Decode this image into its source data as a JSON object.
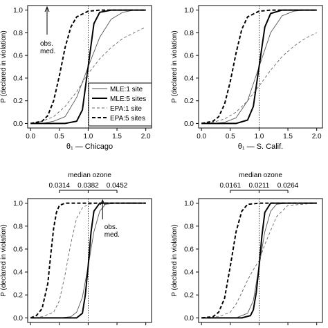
{
  "chart_data": [
    {
      "type": "line",
      "xlabel": "θ₁ — Chicago",
      "ylabel": "P (declared in violation)",
      "xlim": [
        -0.05,
        2.1
      ],
      "ylim": [
        -0.04,
        1.04
      ],
      "xticks": [
        "0.0",
        "0.5",
        "1.0",
        "1.5",
        "2.0"
      ],
      "yticks": [
        "0.0",
        "0.2",
        "0.4",
        "0.6",
        "0.8",
        "1.0"
      ],
      "vline_x": 1.0,
      "annotation": {
        "text": [
          "obs.",
          "med."
        ],
        "position": "top-left",
        "arrow": "up"
      },
      "legend": {
        "position": "bottom-right",
        "entries": [
          "MLE:1 site",
          "MLE:5 sites",
          "EPA:1 site",
          "EPA:5 sites"
        ]
      },
      "series": [
        {
          "name": "MLE:1 site",
          "style": "thin-solid",
          "x": [
            0.0,
            0.2,
            0.4,
            0.6,
            0.8,
            1.0,
            1.2,
            1.4,
            1.6,
            1.8,
            2.0
          ],
          "y": [
            0.0,
            0.0,
            0.02,
            0.06,
            0.23,
            0.5,
            0.76,
            0.92,
            0.98,
            1.0,
            1.0
          ]
        },
        {
          "name": "MLE:5 sites",
          "style": "thick-solid",
          "x": [
            0.0,
            0.2,
            0.4,
            0.6,
            0.8,
            0.9,
            1.0,
            1.1,
            1.2,
            1.4,
            1.6,
            2.0
          ],
          "y": [
            0.0,
            0.0,
            0.0,
            0.0,
            0.02,
            0.12,
            0.5,
            0.88,
            0.98,
            1.0,
            1.0,
            1.0
          ]
        },
        {
          "name": "EPA:1 site",
          "style": "thin-dashed",
          "x": [
            0.0,
            0.2,
            0.4,
            0.6,
            0.8,
            1.0,
            1.2,
            1.4,
            1.6,
            1.8,
            2.0
          ],
          "y": [
            0.0,
            0.02,
            0.06,
            0.15,
            0.28,
            0.44,
            0.57,
            0.67,
            0.75,
            0.8,
            0.85
          ]
        },
        {
          "name": "EPA:5 sites",
          "style": "thick-dashed",
          "x": [
            0.0,
            0.2,
            0.3,
            0.4,
            0.5,
            0.6,
            0.7,
            0.8,
            1.0,
            1.2,
            1.4,
            2.0
          ],
          "y": [
            0.0,
            0.02,
            0.07,
            0.2,
            0.42,
            0.67,
            0.85,
            0.94,
            0.99,
            1.0,
            1.0,
            1.0
          ]
        }
      ]
    },
    {
      "type": "line",
      "xlabel": "θ₁ — S. Calif.",
      "ylabel": "P (declared in violation)",
      "xlim": [
        -0.05,
        2.1
      ],
      "ylim": [
        -0.04,
        1.04
      ],
      "xticks": [
        "0.0",
        "0.5",
        "1.0",
        "1.5",
        "2.0"
      ],
      "yticks": [
        "0.0",
        "0.2",
        "0.4",
        "0.6",
        "0.8",
        "1.0"
      ],
      "vline_x": 1.0,
      "series": [
        {
          "name": "MLE:1 site",
          "style": "thin-solid",
          "x": [
            0.0,
            0.2,
            0.4,
            0.6,
            0.8,
            1.0,
            1.2,
            1.4,
            1.6,
            1.8,
            2.0
          ],
          "y": [
            0.0,
            0.0,
            0.01,
            0.05,
            0.2,
            0.5,
            0.8,
            0.95,
            0.99,
            1.0,
            1.0
          ]
        },
        {
          "name": "MLE:5 sites",
          "style": "thick-solid",
          "x": [
            0.0,
            0.2,
            0.4,
            0.6,
            0.8,
            0.9,
            1.0,
            1.1,
            1.2,
            1.4,
            2.0
          ],
          "y": [
            0.0,
            0.0,
            0.0,
            0.0,
            0.03,
            0.15,
            0.5,
            0.85,
            0.97,
            1.0,
            1.0
          ]
        },
        {
          "name": "EPA:1 site",
          "style": "thin-dashed",
          "x": [
            0.0,
            0.2,
            0.4,
            0.6,
            0.8,
            1.0,
            1.2,
            1.4,
            1.6,
            1.8,
            2.0
          ],
          "y": [
            0.0,
            0.01,
            0.04,
            0.1,
            0.2,
            0.33,
            0.47,
            0.59,
            0.68,
            0.75,
            0.8
          ]
        },
        {
          "name": "EPA:5 sites",
          "style": "thick-dashed",
          "x": [
            0.0,
            0.2,
            0.3,
            0.4,
            0.5,
            0.6,
            0.7,
            0.8,
            1.0,
            1.2,
            1.5,
            2.0
          ],
          "y": [
            0.0,
            0.02,
            0.06,
            0.17,
            0.37,
            0.62,
            0.83,
            0.94,
            0.99,
            1.0,
            1.0,
            1.0
          ]
        }
      ]
    },
    {
      "type": "line",
      "top_axis_label": "median ozone",
      "ylabel": "P (declared in violation)",
      "xlim": [
        -0.05,
        2.1
      ],
      "ylim": [
        -0.04,
        1.04
      ],
      "top_ticks": [
        {
          "x": 0.5,
          "label": "0.0314"
        },
        {
          "x": 1.0,
          "label": "0.0382"
        },
        {
          "x": 1.5,
          "label": "0.0452"
        }
      ],
      "yticks": [
        "0.0",
        "0.2",
        "0.4",
        "0.6",
        "0.8",
        "1.0"
      ],
      "vline_x": 1.0,
      "annotation": {
        "text": [
          "obs.",
          "med."
        ],
        "position": "top-right",
        "arrow": "up"
      },
      "series": [
        {
          "name": "MLE:1 site",
          "style": "thin-solid",
          "x": [
            0.0,
            0.5,
            0.7,
            0.8,
            0.9,
            1.0,
            1.1,
            1.2,
            1.3,
            1.5,
            2.0
          ],
          "y": [
            0.0,
            0.0,
            0.01,
            0.05,
            0.18,
            0.45,
            0.75,
            0.93,
            0.99,
            1.0,
            1.0
          ]
        },
        {
          "name": "MLE:5 sites",
          "style": "thick-solid",
          "x": [
            0.0,
            0.6,
            0.8,
            0.9,
            0.95,
            1.0,
            1.05,
            1.1,
            1.2,
            1.4,
            2.0
          ],
          "y": [
            0.0,
            0.0,
            0.0,
            0.04,
            0.2,
            0.45,
            0.75,
            0.93,
            1.0,
            1.0,
            1.0
          ]
        },
        {
          "name": "EPA:1 site",
          "style": "thin-dashed",
          "x": [
            0.0,
            0.2,
            0.4,
            0.5,
            0.6,
            0.7,
            0.8,
            0.9,
            1.0,
            1.2,
            2.0
          ],
          "y": [
            0.0,
            0.01,
            0.05,
            0.15,
            0.38,
            0.65,
            0.87,
            0.96,
            0.99,
            1.0,
            1.0
          ]
        },
        {
          "name": "EPA:5 sites",
          "style": "thick-dashed",
          "x": [
            0.0,
            0.1,
            0.2,
            0.3,
            0.35,
            0.4,
            0.45,
            0.5,
            0.6,
            0.8,
            2.0
          ],
          "y": [
            0.0,
            0.02,
            0.08,
            0.3,
            0.55,
            0.78,
            0.92,
            0.98,
            1.0,
            1.0,
            1.0
          ]
        }
      ]
    },
    {
      "type": "line",
      "top_axis_label": "median ozone",
      "ylabel": "P (declared in violation)",
      "xlim": [
        -0.05,
        2.1
      ],
      "ylim": [
        -0.04,
        1.04
      ],
      "top_ticks": [
        {
          "x": 0.5,
          "label": "0.0161"
        },
        {
          "x": 1.0,
          "label": "0.0211"
        },
        {
          "x": 1.5,
          "label": "0.0264"
        }
      ],
      "yticks": [
        "0.0",
        "0.2",
        "0.4",
        "0.6",
        "0.8",
        "1.0"
      ],
      "vline_x": 1.0,
      "series": [
        {
          "name": "MLE:1 site",
          "style": "thin-solid",
          "x": [
            0.0,
            0.6,
            0.8,
            0.9,
            1.0,
            1.1,
            1.2,
            1.3,
            1.5,
            2.0
          ],
          "y": [
            0.0,
            0.0,
            0.04,
            0.15,
            0.45,
            0.75,
            0.93,
            0.99,
            1.0,
            1.0
          ]
        },
        {
          "name": "MLE:5 sites",
          "style": "thick-solid",
          "x": [
            0.0,
            0.7,
            0.85,
            0.9,
            0.95,
            1.0,
            1.05,
            1.1,
            1.2,
            2.0
          ],
          "y": [
            0.0,
            0.0,
            0.02,
            0.07,
            0.22,
            0.45,
            0.72,
            0.92,
            1.0,
            1.0
          ]
        },
        {
          "name": "EPA:1 site",
          "style": "thin-dashed",
          "x": [
            0.0,
            0.3,
            0.5,
            0.6,
            0.7,
            0.8,
            0.9,
            1.0,
            1.1,
            1.3,
            1.5,
            2.0
          ],
          "y": [
            0.0,
            0.01,
            0.05,
            0.12,
            0.22,
            0.33,
            0.42,
            0.5,
            0.64,
            0.88,
            0.98,
            1.0
          ]
        },
        {
          "name": "EPA:5 sites",
          "style": "thick-dashed",
          "x": [
            0.0,
            0.2,
            0.3,
            0.4,
            0.5,
            0.6,
            0.7,
            0.8,
            1.0,
            2.0
          ],
          "y": [
            0.0,
            0.01,
            0.05,
            0.17,
            0.45,
            0.75,
            0.93,
            0.99,
            1.0,
            1.0
          ]
        }
      ]
    }
  ]
}
